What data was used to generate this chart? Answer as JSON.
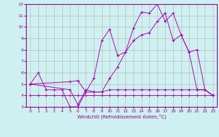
{
  "xlabel": "Windchill (Refroidissement éolien,°C)",
  "background_color": "#cff0f0",
  "grid_color": "#b0b0b0",
  "line_color": "#aa00aa",
  "xlim": [
    -0.5,
    23.5
  ],
  "ylim": [
    3,
    12
  ],
  "yticks": [
    3,
    4,
    5,
    6,
    7,
    8,
    9,
    10,
    11,
    12
  ],
  "xticks": [
    0,
    1,
    2,
    3,
    4,
    5,
    6,
    7,
    8,
    9,
    10,
    11,
    12,
    13,
    14,
    15,
    16,
    17,
    18,
    19,
    20,
    21,
    22,
    23
  ],
  "series1_x": [
    0,
    1,
    2,
    3,
    4,
    5,
    6,
    7,
    8,
    9,
    10,
    11,
    12,
    13,
    14,
    15,
    16,
    17,
    18,
    19,
    20,
    21,
    22,
    23
  ],
  "series1_y": [
    4.0,
    4.0,
    4.0,
    4.0,
    4.0,
    4.0,
    4.0,
    4.0,
    4.0,
    4.0,
    4.0,
    4.0,
    4.0,
    4.0,
    4.0,
    4.0,
    4.0,
    4.0,
    4.0,
    4.0,
    4.0,
    4.0,
    4.0,
    4.0
  ],
  "series2_x": [
    0,
    1,
    2,
    3,
    4,
    5,
    6,
    7,
    8,
    9,
    10,
    11,
    12,
    13,
    14,
    15,
    16,
    17,
    18,
    19,
    20,
    21,
    22,
    23
  ],
  "series2_y": [
    5.0,
    6.0,
    4.5,
    4.5,
    4.5,
    3.0,
    3.0,
    4.3,
    4.3,
    4.3,
    4.5,
    4.5,
    4.5,
    4.5,
    4.5,
    4.5,
    4.5,
    4.5,
    4.5,
    4.5,
    4.5,
    4.5,
    4.5,
    4.0
  ],
  "series3_x": [
    0,
    5,
    6,
    7,
    8,
    9,
    10,
    11,
    12,
    13,
    14,
    15,
    16,
    17,
    18,
    19,
    20,
    21,
    22,
    23
  ],
  "series3_y": [
    5.0,
    5.2,
    5.3,
    4.3,
    5.5,
    8.8,
    9.8,
    7.5,
    7.8,
    9.9,
    11.3,
    11.2,
    12.0,
    10.5,
    11.2,
    9.3,
    7.8,
    4.5,
    4.5,
    4.0
  ],
  "series4_x": [
    0,
    5,
    6,
    7,
    8,
    9,
    10,
    11,
    12,
    13,
    14,
    15,
    16,
    17,
    18,
    19,
    20,
    21,
    22,
    23
  ],
  "series4_y": [
    5.0,
    4.5,
    3.2,
    4.5,
    4.3,
    4.3,
    5.5,
    6.5,
    7.8,
    8.8,
    9.3,
    9.5,
    10.5,
    11.2,
    8.8,
    9.3,
    7.8,
    8.0,
    4.5,
    4.0
  ]
}
